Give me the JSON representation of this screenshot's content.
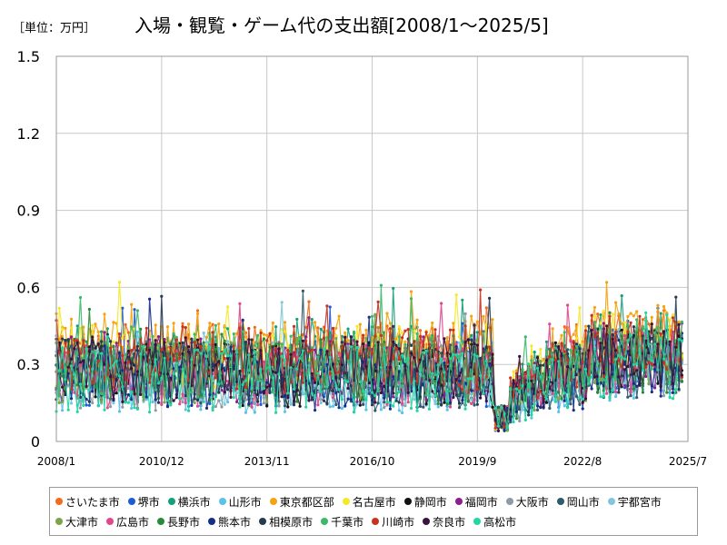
{
  "unit_label": "［単位：万円］",
  "chart_data": {
    "type": "line",
    "title": "入場・観覧・ゲーム代の支出額[2008/1～2025/5]",
    "xlabel": "",
    "ylabel": "",
    "ylim": [
      0,
      1.5
    ],
    "y_ticks": [
      "0",
      "0.3",
      "0.6",
      "0.9",
      "1.2",
      "1.5"
    ],
    "x_ticks": [
      "2008/1",
      "2010/12",
      "2013/11",
      "2016/10",
      "2019/9",
      "2022/8",
      "2025/7"
    ],
    "grid": true,
    "legend_position": "bottom",
    "series": [
      {
        "name": "さいたま市",
        "color": "#f26b1d",
        "base": 0.33
      },
      {
        "name": "堺市",
        "color": "#1f5bd6",
        "base": 0.26
      },
      {
        "name": "横浜市",
        "color": "#16a07a",
        "base": 0.32
      },
      {
        "name": "山形市",
        "color": "#5bc2ea",
        "base": 0.24
      },
      {
        "name": "東京都区部",
        "color": "#f5a310",
        "base": 0.37
      },
      {
        "name": "名古屋市",
        "color": "#f5e82a",
        "base": 0.33
      },
      {
        "name": "静岡市",
        "color": "#111111",
        "base": 0.26
      },
      {
        "name": "福岡市",
        "color": "#8e1e8e",
        "base": 0.28
      },
      {
        "name": "大阪市",
        "color": "#8e9ba6",
        "base": 0.25
      },
      {
        "name": "岡山市",
        "color": "#2f5a6e",
        "base": 0.25
      },
      {
        "name": "宇都宮市",
        "color": "#82c6dc",
        "base": 0.26
      },
      {
        "name": "大津市",
        "color": "#7ea34a",
        "base": 0.28
      },
      {
        "name": "広島市",
        "color": "#e0478d",
        "base": 0.26
      },
      {
        "name": "長野市",
        "color": "#2a8a3a",
        "base": 0.27
      },
      {
        "name": "熊本市",
        "color": "#142f8a",
        "base": 0.25
      },
      {
        "name": "相模原市",
        "color": "#243a52",
        "base": 0.27
      },
      {
        "name": "千葉市",
        "color": "#3cb86a",
        "base": 0.3
      },
      {
        "name": "川崎市",
        "color": "#c8321e",
        "base": 0.32
      },
      {
        "name": "奈良市",
        "color": "#3a1240",
        "base": 0.28
      },
      {
        "name": "高松市",
        "color": "#22d6a0",
        "base": 0.24
      }
    ]
  }
}
